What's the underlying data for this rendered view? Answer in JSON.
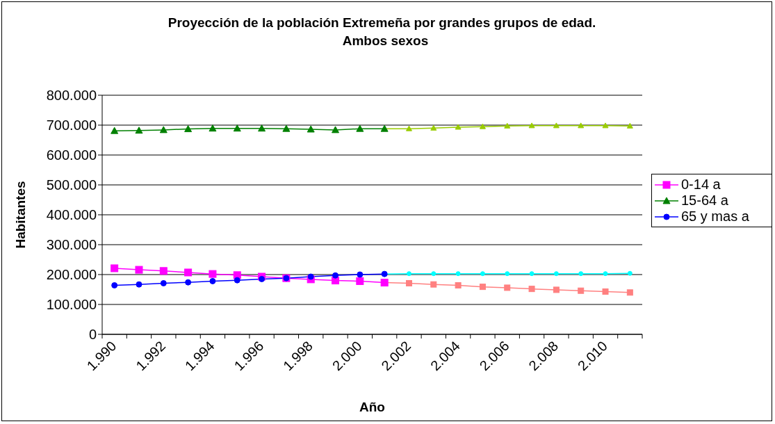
{
  "chart_data": {
    "type": "line",
    "title": "Proyección de la población Extremeña por grandes grupos de edad.\nAmbos sexos",
    "xlabel": "Año",
    "ylabel": "Habitantes",
    "categories": [
      "1.990",
      null,
      "1.992",
      null,
      "1.994",
      null,
      "1.996",
      null,
      "1.998",
      null,
      "2.000",
      null,
      "2.002",
      null,
      "2.004",
      null,
      "2.006",
      null,
      "2.008",
      null,
      "2.010",
      null
    ],
    "series": [
      {
        "name": "0-14 a",
        "color": "#ff00ff",
        "marker": "square",
        "colors": [
          "#ff00ff",
          "#ff00ff",
          "#ff00ff",
          "#ff00ff",
          "#ff00ff",
          "#ff00ff",
          "#ff00ff",
          "#ff00ff",
          "#ff00ff",
          "#ff00ff",
          "#ff00ff",
          "#ff00ff",
          "#ff8080",
          "#ff8080",
          "#ff8080",
          "#ff8080",
          "#ff8080",
          "#ff8080",
          "#ff8080",
          "#ff8080",
          "#ff8080",
          "#ff8080"
        ],
        "values": [
          221000,
          216000,
          212000,
          207000,
          202000,
          198000,
          193000,
          188000,
          184000,
          180000,
          178000,
          173000,
          171000,
          167000,
          164000,
          159000,
          156000,
          152000,
          149000,
          146000,
          143000,
          140000
        ]
      },
      {
        "name": "15-64 a",
        "color": "#008000",
        "marker": "triangle",
        "colors": [
          "#008000",
          "#008000",
          "#008000",
          "#008000",
          "#008000",
          "#008000",
          "#008000",
          "#008000",
          "#008000",
          "#008000",
          "#008000",
          "#008000",
          "#99cc00",
          "#99cc00",
          "#99cc00",
          "#99cc00",
          "#99cc00",
          "#99cc00",
          "#99cc00",
          "#99cc00",
          "#99cc00",
          "#99cc00"
        ],
        "values": [
          681000,
          682000,
          684000,
          687000,
          689000,
          689000,
          689000,
          688000,
          686000,
          684000,
          688000,
          688000,
          688000,
          690000,
          693000,
          695000,
          697000,
          698000,
          698000,
          698000,
          698000,
          697000
        ]
      },
      {
        "name": "65 y mas a",
        "color": "#0000ff",
        "marker": "circle",
        "colors": [
          "#0000ff",
          "#0000ff",
          "#0000ff",
          "#0000ff",
          "#0000ff",
          "#0000ff",
          "#0000ff",
          "#0000ff",
          "#0000ff",
          "#0000ff",
          "#0000ff",
          "#0000ff",
          "#00ffff",
          "#00ffff",
          "#00ffff",
          "#00ffff",
          "#00ffff",
          "#00ffff",
          "#00ffff",
          "#00ffff",
          "#00ffff",
          "#00ffff"
        ],
        "values": [
          164000,
          167000,
          171000,
          174000,
          178000,
          181000,
          185000,
          188000,
          193000,
          197000,
          200000,
          202000,
          203000,
          203000,
          203000,
          203000,
          203000,
          203000,
          203000,
          203000,
          203000,
          204000
        ]
      }
    ],
    "ylim": [
      0,
      800000
    ],
    "yticks": [
      {
        "value": 0,
        "label": "0"
      },
      {
        "value": 100000,
        "label": "100.000"
      },
      {
        "value": 200000,
        "label": "200.000"
      },
      {
        "value": 300000,
        "label": "300.000"
      },
      {
        "value": 400000,
        "label": "400.000"
      },
      {
        "value": 500000,
        "label": "500.000"
      },
      {
        "value": 600000,
        "label": "600.000"
      },
      {
        "value": 700000,
        "label": "700.000"
      },
      {
        "value": 800000,
        "label": "800.000"
      }
    ],
    "grid": "y",
    "legend": "right",
    "line_style": "solid"
  }
}
